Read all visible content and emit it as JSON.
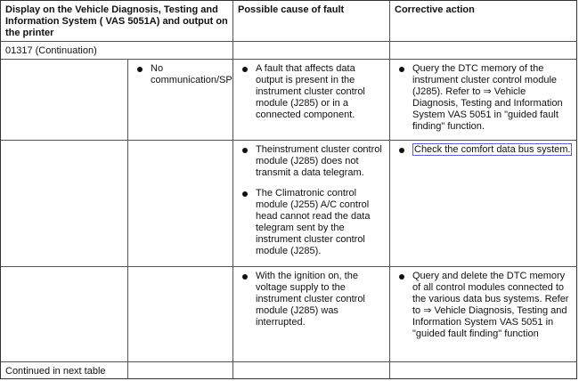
{
  "header": {
    "display": "Display on the Vehicle Diagnosis, Testing and Information System ( VAS 5051A) and output on the printer",
    "cause": "Possible cause of fault",
    "action": "Corrective action"
  },
  "continuation": "01317 (Continuation)",
  "rows": [
    {
      "display": "No communication/SP",
      "causes": [
        "A fault that affects data output is present in the instrument cluster control module (J285) or in a connected component."
      ],
      "actions": [
        "Query the DTC memory of the instrument cluster control module (J285). Refer to ⇒ Vehicle Diagnosis, Testing and Information System VAS 5051 in \"guided fault finding\" function."
      ]
    },
    {
      "causes": [
        "Theinstrument cluster control module (J285) does not transmit a data telegram.",
        "The Climatronic control module (J255) A/C control head cannot read the data telegram sent by the instrument cluster control module (J285)."
      ],
      "actions": [
        "Check the comfort data bus system."
      ]
    },
    {
      "causes": [
        "With the ignition on, the voltage supply to the instrument cluster control module (J285) was interrupted."
      ],
      "actions": [
        "Query and delete the DTC memory of all control modules connected to the various data bus systems. Refer to ⇒ Vehicle Diagnosis, Testing and Information System VAS 5051 in \"guided fault finding\" function"
      ]
    }
  ],
  "footer": "Continued in next table"
}
